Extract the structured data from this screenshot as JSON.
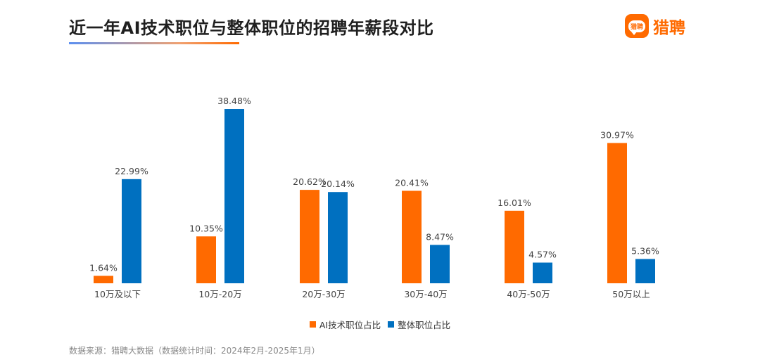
{
  "header": {
    "title": "近一年AI技术职位与整体职位的招聘年薪段对比",
    "logo_mark_text": "猎聘",
    "logo_text": "猎聘"
  },
  "colors": {
    "ai": "#ff6a00",
    "overall": "#0070c0",
    "accent": "#ff6a00"
  },
  "chart_data": {
    "type": "bar",
    "title": "近一年AI技术职位与整体职位的招聘年薪段对比",
    "categories": [
      "10万及以下",
      "10万-20万",
      "20万-30万",
      "30万-40万",
      "40万-50万",
      "50万以上"
    ],
    "series": [
      {
        "name": "AI技术职位占比",
        "values": [
          1.64,
          10.35,
          20.62,
          20.41,
          16.01,
          30.97
        ],
        "labels": [
          "1.64%",
          "10.35%",
          "20.62%",
          "20.41%",
          "16.01%",
          "30.97%"
        ]
      },
      {
        "name": "整体职位占比",
        "values": [
          22.99,
          38.48,
          20.14,
          8.47,
          4.57,
          5.36
        ],
        "labels": [
          "22.99%",
          "38.48%",
          "20.14%",
          "8.47%",
          "4.57%",
          "5.36%"
        ]
      }
    ],
    "ylim": [
      0,
      40
    ],
    "xlabel": "",
    "ylabel": "",
    "grid": false,
    "legend": "bottom"
  },
  "legend": {
    "ai_label": "AI技术职位占比",
    "overall_label": "整体职位占比"
  },
  "footer": {
    "source": "数据来源：猎聘大数据（数据统计时间：2024年2月-2025年1月）"
  }
}
